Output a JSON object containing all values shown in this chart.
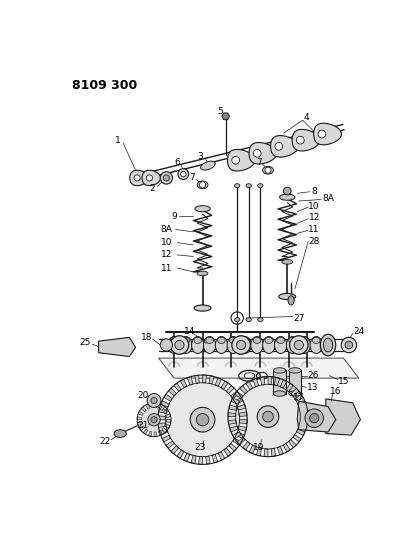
{
  "title": "8109 300",
  "background_color": "#ffffff",
  "line_color": "#1a1a1a",
  "text_color": "#000000",
  "fig_width": 4.11,
  "fig_height": 5.33,
  "dpi": 100
}
